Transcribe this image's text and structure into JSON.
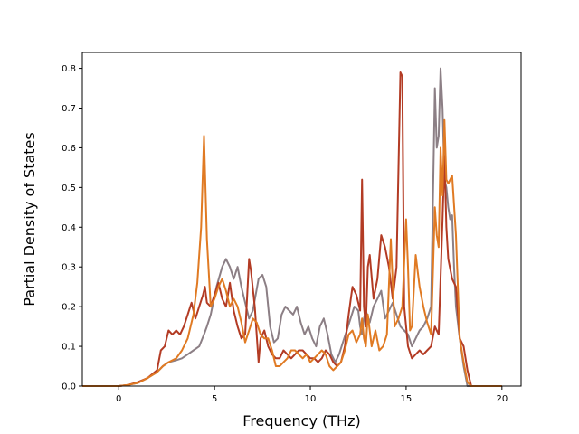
{
  "chart_data": {
    "type": "line",
    "title": "",
    "xlabel": "Frequency (THz)",
    "ylabel": "Partial Density of States",
    "xlim": [
      -1.9,
      21.0
    ],
    "ylim": [
      0.0,
      0.84
    ],
    "xticks": [
      0,
      5,
      10,
      15,
      20
    ],
    "xtick_labels": [
      "0",
      "5",
      "10",
      "15",
      "20"
    ],
    "yticks": [
      0.0,
      0.1,
      0.2,
      0.3,
      0.4,
      0.5,
      0.6,
      0.7,
      0.8
    ],
    "ytick_labels": [
      "0.0",
      "0.1",
      "0.2",
      "0.3",
      "0.4",
      "0.5",
      "0.6",
      "0.7",
      "0.8"
    ],
    "grid": false,
    "legend": "none",
    "series": [
      {
        "color": "#8c7f85",
        "x": [
          -1.9,
          0,
          0.5,
          1,
          1.5,
          2,
          2.3,
          2.6,
          3,
          3.3,
          3.6,
          3.9,
          4.2,
          4.45,
          4.6,
          4.8,
          5.1,
          5.4,
          5.6,
          5.8,
          6,
          6.2,
          6.4,
          6.6,
          6.8,
          7,
          7.3,
          7.5,
          7.7,
          7.9,
          8.1,
          8.3,
          8.5,
          8.7,
          8.9,
          9.1,
          9.3,
          9.5,
          9.7,
          9.9,
          10.1,
          10.3,
          10.5,
          10.7,
          10.9,
          11.1,
          11.3,
          11.5,
          11.7,
          11.9,
          12.1,
          12.3,
          12.5,
          12.6,
          12.7,
          12.8,
          12.9,
          13.1,
          13.3,
          13.5,
          13.7,
          13.9,
          14.1,
          14.3,
          14.5,
          14.7,
          14.9,
          15.1,
          15.3,
          15.5,
          15.7,
          15.9,
          16.1,
          16.3,
          16.5,
          16.6,
          16.7,
          16.8,
          16.9,
          17,
          17.1,
          17.2,
          17.3,
          17.4,
          17.5,
          17.6,
          17.8,
          18,
          18.2,
          18.4,
          20
        ],
        "y": [
          0,
          0,
          0.003,
          0.008,
          0.02,
          0.035,
          0.05,
          0.06,
          0.065,
          0.07,
          0.08,
          0.09,
          0.1,
          0.13,
          0.15,
          0.18,
          0.25,
          0.3,
          0.32,
          0.3,
          0.27,
          0.3,
          0.25,
          0.21,
          0.17,
          0.19,
          0.27,
          0.28,
          0.25,
          0.15,
          0.11,
          0.12,
          0.18,
          0.2,
          0.19,
          0.18,
          0.2,
          0.16,
          0.13,
          0.15,
          0.12,
          0.1,
          0.15,
          0.17,
          0.13,
          0.08,
          0.06,
          0.08,
          0.11,
          0.14,
          0.17,
          0.2,
          0.19,
          0.15,
          0.13,
          0.17,
          0.19,
          0.16,
          0.2,
          0.22,
          0.24,
          0.17,
          0.19,
          0.21,
          0.18,
          0.15,
          0.14,
          0.13,
          0.1,
          0.12,
          0.14,
          0.15,
          0.17,
          0.2,
          0.75,
          0.6,
          0.63,
          0.8,
          0.7,
          0.52,
          0.5,
          0.45,
          0.42,
          0.43,
          0.3,
          0.2,
          0.12,
          0.05,
          0,
          0,
          0
        ]
      },
      {
        "color": "#b33b24",
        "x": [
          -1.9,
          0,
          0.5,
          1,
          1.5,
          2,
          2.2,
          2.4,
          2.6,
          2.8,
          3,
          3.2,
          3.4,
          3.6,
          3.8,
          4,
          4.2,
          4.4,
          4.5,
          4.6,
          4.8,
          5,
          5.2,
          5.4,
          5.6,
          5.8,
          6,
          6.2,
          6.4,
          6.6,
          6.8,
          6.9,
          7.1,
          7.3,
          7.4,
          7.6,
          7.8,
          8,
          8.2,
          8.4,
          8.6,
          8.8,
          9,
          9.2,
          9.4,
          9.6,
          9.8,
          10,
          10.2,
          10.4,
          10.6,
          10.8,
          11,
          11.2,
          11.4,
          11.6,
          11.8,
          12,
          12.2,
          12.4,
          12.6,
          12.7,
          12.8,
          12.9,
          13,
          13.1,
          13.3,
          13.5,
          13.7,
          13.9,
          14.1,
          14.3,
          14.5,
          14.7,
          14.8,
          14.9,
          15.1,
          15.3,
          15.5,
          15.7,
          15.9,
          16.1,
          16.3,
          16.5,
          16.7,
          16.9,
          17,
          17.1,
          17.2,
          17.4,
          17.6,
          17.8,
          18,
          18.2,
          18.4,
          20
        ],
        "y": [
          0,
          0,
          0.003,
          0.01,
          0.02,
          0.04,
          0.09,
          0.1,
          0.14,
          0.13,
          0.14,
          0.13,
          0.15,
          0.18,
          0.21,
          0.17,
          0.2,
          0.23,
          0.25,
          0.21,
          0.2,
          0.23,
          0.26,
          0.22,
          0.2,
          0.26,
          0.19,
          0.15,
          0.12,
          0.13,
          0.32,
          0.29,
          0.2,
          0.06,
          0.12,
          0.14,
          0.1,
          0.08,
          0.07,
          0.07,
          0.09,
          0.08,
          0.07,
          0.08,
          0.09,
          0.09,
          0.08,
          0.07,
          0.07,
          0.06,
          0.07,
          0.09,
          0.08,
          0.06,
          0.05,
          0.06,
          0.1,
          0.18,
          0.25,
          0.23,
          0.19,
          0.52,
          0.2,
          0.15,
          0.3,
          0.33,
          0.22,
          0.27,
          0.38,
          0.35,
          0.3,
          0.22,
          0.3,
          0.79,
          0.78,
          0.2,
          0.1,
          0.07,
          0.08,
          0.09,
          0.08,
          0.09,
          0.1,
          0.15,
          0.13,
          0.42,
          0.58,
          0.4,
          0.32,
          0.27,
          0.25,
          0.12,
          0.1,
          0.04,
          0,
          0
        ]
      },
      {
        "color": "#e07a23",
        "x": [
          -1.9,
          0,
          0.5,
          1,
          1.5,
          2,
          2.3,
          2.6,
          3,
          3.3,
          3.6,
          3.9,
          4.1,
          4.3,
          4.45,
          4.6,
          4.8,
          5,
          5.2,
          5.4,
          5.6,
          5.8,
          6,
          6.2,
          6.4,
          6.6,
          6.8,
          7,
          7.2,
          7.4,
          7.6,
          7.8,
          8,
          8.2,
          8.4,
          8.6,
          8.8,
          9,
          9.2,
          9.4,
          9.6,
          9.8,
          10,
          10.2,
          10.4,
          10.6,
          10.8,
          11,
          11.2,
          11.4,
          11.6,
          11.8,
          12,
          12.2,
          12.4,
          12.6,
          12.7,
          12.8,
          12.9,
          13,
          13.2,
          13.4,
          13.6,
          13.8,
          14,
          14.2,
          14.4,
          14.6,
          14.8,
          15,
          15.1,
          15.2,
          15.3,
          15.5,
          15.7,
          15.9,
          16.1,
          16.3,
          16.5,
          16.6,
          16.7,
          16.8,
          16.9,
          17,
          17.1,
          17.2,
          17.4,
          17.6,
          17.8,
          18,
          18.2,
          18.4,
          20
        ],
        "y": [
          0,
          0,
          0.003,
          0.008,
          0.02,
          0.035,
          0.05,
          0.06,
          0.07,
          0.09,
          0.12,
          0.18,
          0.26,
          0.4,
          0.63,
          0.37,
          0.2,
          0.22,
          0.25,
          0.27,
          0.24,
          0.2,
          0.22,
          0.2,
          0.16,
          0.11,
          0.14,
          0.17,
          0.16,
          0.13,
          0.12,
          0.12,
          0.09,
          0.05,
          0.05,
          0.06,
          0.07,
          0.09,
          0.09,
          0.08,
          0.07,
          0.08,
          0.06,
          0.07,
          0.08,
          0.09,
          0.08,
          0.05,
          0.04,
          0.05,
          0.06,
          0.09,
          0.13,
          0.14,
          0.11,
          0.13,
          0.17,
          0.12,
          0.1,
          0.18,
          0.1,
          0.14,
          0.09,
          0.1,
          0.13,
          0.37,
          0.15,
          0.17,
          0.2,
          0.42,
          0.3,
          0.14,
          0.15,
          0.33,
          0.25,
          0.2,
          0.16,
          0.13,
          0.45,
          0.38,
          0.35,
          0.6,
          0.48,
          0.67,
          0.52,
          0.51,
          0.53,
          0.38,
          0.12,
          0.06,
          0.01,
          0,
          0
        ]
      }
    ]
  }
}
